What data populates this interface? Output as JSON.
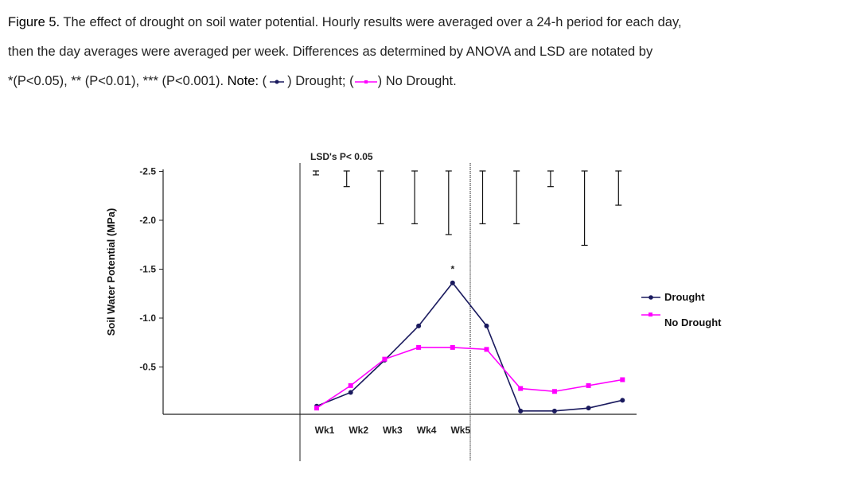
{
  "caption": {
    "figure_label": "Figure 5.",
    "line1": "The effect of drought on soil water potential. Hourly results were averaged over a 24-h period for each day,",
    "line2": "then the day averages were averaged per week. Differences as determined by ANOVA and LSD are notated by",
    "line3_sig": "*(P<0.05), ** (P<0.01), *** (P<0.001).",
    "note_label": "Note:",
    "note_open1": "(",
    "note_drought": ") Drought;",
    "note_open2": "(",
    "note_no_drought": ") No Drought."
  },
  "chart_data": {
    "type": "line",
    "title": "",
    "xlabel": "",
    "ylabel": "Soil Water Potential (MPa)",
    "ylim": [
      0,
      -2.5
    ],
    "y_ticks": [
      "-2.5",
      "-2.0",
      "-1.5",
      "-1.0",
      "-0.5"
    ],
    "y_tick_values": [
      -2.5,
      -2.0,
      -1.5,
      -1.0,
      -0.5
    ],
    "categories": [
      "Wk1",
      "Wk2",
      "Wk3",
      "Wk4",
      "Wk5",
      "",
      "",
      "",
      "",
      ""
    ],
    "x_tick_labels": [
      "Wk1",
      "Wk2",
      "Wk3",
      "Wk4",
      "Wk5"
    ],
    "series": [
      {
        "name": "Drought",
        "color": "#1a1a5e",
        "marker": "diamond",
        "values": [
          -0.1,
          -0.24,
          -0.57,
          -0.92,
          -1.36,
          -0.92,
          -0.05,
          -0.05,
          -0.08,
          -0.16
        ]
      },
      {
        "name": "No Drought",
        "color": "#ff00ff",
        "marker": "square",
        "values": [
          -0.08,
          -0.31,
          -0.58,
          -0.7,
          -0.7,
          -0.68,
          -0.28,
          -0.25,
          -0.31,
          -0.37
        ]
      }
    ],
    "lsd_label": "LSD's P< 0.05",
    "lsd_values": [
      0.04,
      0.16,
      0.54,
      0.54,
      0.65,
      0.54,
      0.54,
      0.16,
      0.76,
      0.35
    ],
    "annotations": [
      {
        "week_index": 5,
        "text": "*",
        "value": -1.5
      }
    ],
    "legend_position": "right",
    "grid": false
  }
}
